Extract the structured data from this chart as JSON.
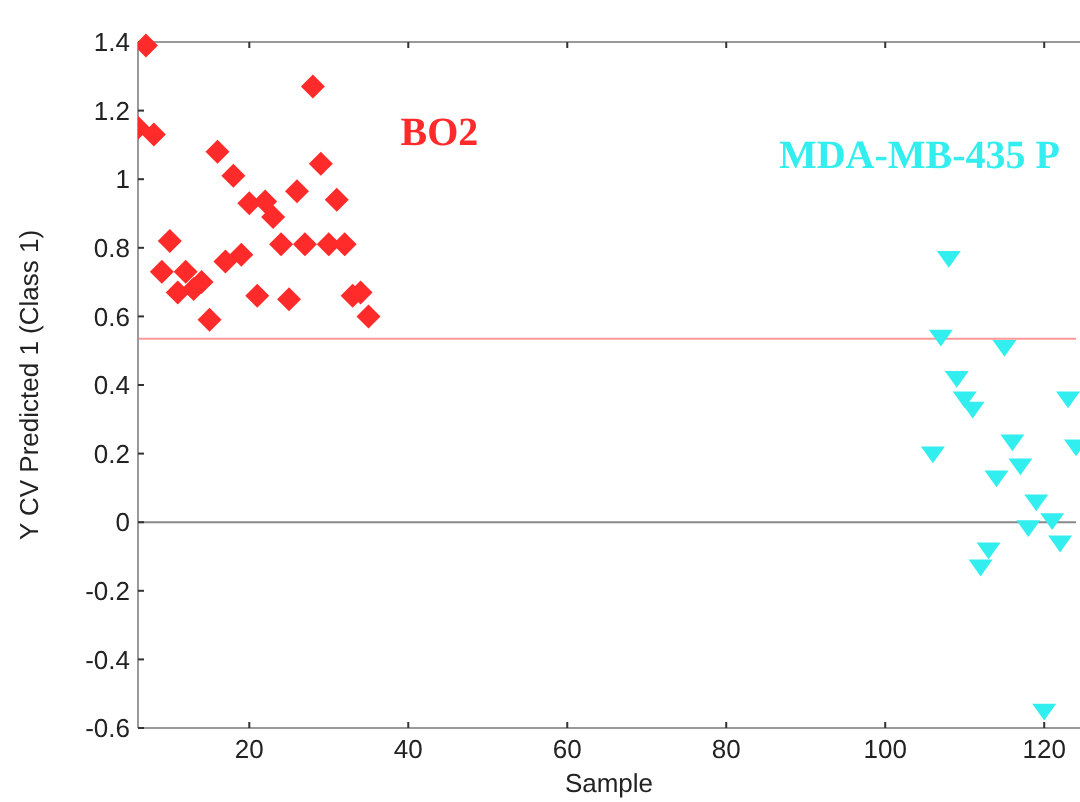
{
  "chart_data": {
    "type": "scatter",
    "xlabel": "Sample",
    "ylabel": "Y CV Predicted 1 (Class 1)",
    "xlim": [
      6,
      124
    ],
    "ylim": [
      -0.6,
      1.4
    ],
    "xticks": [
      20,
      40,
      60,
      80,
      100,
      120
    ],
    "yticks": [
      -0.6,
      -0.4,
      -0.2,
      0,
      0.2,
      0.4,
      0.6,
      0.8,
      1,
      1.2,
      1.4
    ],
    "grid": false,
    "ref_lines": [
      {
        "axis": "y",
        "value": 0.535,
        "color": "#ff9999"
      },
      {
        "axis": "y",
        "value": 0,
        "color": "#888888"
      }
    ],
    "series": [
      {
        "name": "BO2",
        "color": "#ff2a2a",
        "marker": "diamond",
        "x": [
          6,
          7,
          8,
          9,
          10,
          11,
          12,
          13,
          14,
          15,
          16,
          17,
          18,
          19,
          20,
          21,
          22,
          23,
          24,
          25,
          26,
          27,
          28,
          29,
          30,
          31,
          32,
          33,
          34,
          35
        ],
        "values": [
          1.15,
          1.39,
          1.13,
          0.73,
          0.82,
          0.67,
          0.73,
          0.68,
          0.7,
          0.59,
          1.08,
          0.76,
          1.01,
          0.78,
          0.93,
          0.66,
          0.935,
          0.89,
          0.81,
          0.65,
          0.965,
          0.81,
          1.27,
          1.045,
          0.81,
          0.94,
          0.81,
          0.66,
          0.67,
          0.6
        ]
      },
      {
        "name": "MDA-MB-435 P",
        "color": "#33eeee",
        "marker": "triangle",
        "x": [
          106,
          107,
          108,
          109,
          110,
          111,
          112,
          113,
          114,
          115,
          116,
          117,
          118,
          119,
          120,
          121,
          122,
          123,
          124
        ],
        "values": [
          0.2,
          0.54,
          0.77,
          0.42,
          0.36,
          0.33,
          -0.13,
          -0.08,
          0.13,
          0.51,
          0.235,
          0.165,
          -0.015,
          0.06,
          -0.55,
          0.005,
          -0.06,
          0.36,
          0.22
        ]
      }
    ]
  }
}
